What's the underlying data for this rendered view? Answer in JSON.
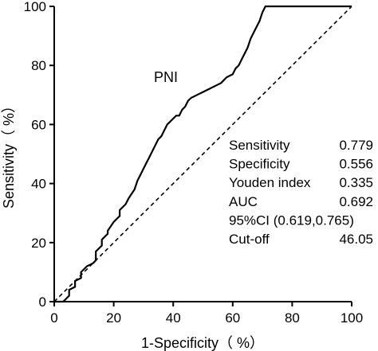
{
  "chart_data": {
    "type": "line",
    "xlabel": "1-Specificity（ %）",
    "ylabel": "Sensitivity（ %）",
    "xlim": [
      0,
      100
    ],
    "ylim": [
      0,
      100
    ],
    "xticks": [
      "0",
      "20",
      "40",
      "60",
      "80",
      "100"
    ],
    "yticks": [
      "0",
      "20",
      "40",
      "60",
      "80",
      "100"
    ],
    "grid": false,
    "legend": "none",
    "series": [
      {
        "name": "PNI",
        "style": "solid",
        "color": "#000000",
        "x": [
          0,
          3,
          5,
          5,
          7,
          7,
          9,
          9,
          11,
          13,
          14,
          14,
          16,
          16,
          18,
          18,
          20,
          21,
          22,
          22,
          24,
          25,
          27,
          28,
          29,
          30,
          31,
          32,
          33,
          34,
          35,
          36,
          37,
          38,
          39,
          40,
          41,
          42,
          43,
          44,
          45,
          46,
          48,
          50,
          52,
          54,
          56,
          57,
          58,
          60,
          61,
          62,
          63,
          64,
          65,
          66,
          67,
          68,
          69,
          70,
          71,
          72,
          100
        ],
        "y": [
          0,
          0,
          2,
          4,
          5,
          7,
          8,
          10,
          12,
          13,
          14,
          17,
          19,
          21,
          23,
          24,
          27,
          28,
          29,
          31,
          33,
          35,
          38,
          41,
          43,
          45,
          47,
          49,
          51,
          53,
          55,
          56,
          58,
          60,
          61,
          62,
          63,
          63,
          65,
          66,
          68,
          69,
          70,
          71,
          72,
          73,
          74,
          75,
          76,
          77,
          79,
          80,
          82,
          84,
          86,
          89,
          91,
          93,
          95,
          98,
          100,
          100,
          100
        ]
      },
      {
        "name": "",
        "style": "dashed",
        "color": "#000000",
        "x": [
          0,
          100
        ],
        "y": [
          0,
          100
        ]
      }
    ],
    "series_label": "PNI",
    "annotations": [
      {
        "label": "Sensitivity",
        "value": "0.779"
      },
      {
        "label": "Specificity",
        "value": "0.556"
      },
      {
        "label": "Youden index",
        "value": "0.335"
      },
      {
        "label": "AUC",
        "value": "0.692"
      },
      {
        "label": "95%CI (0.619,0.765)",
        "value": ""
      },
      {
        "label": "Cut-off",
        "value": "46.05"
      }
    ]
  }
}
